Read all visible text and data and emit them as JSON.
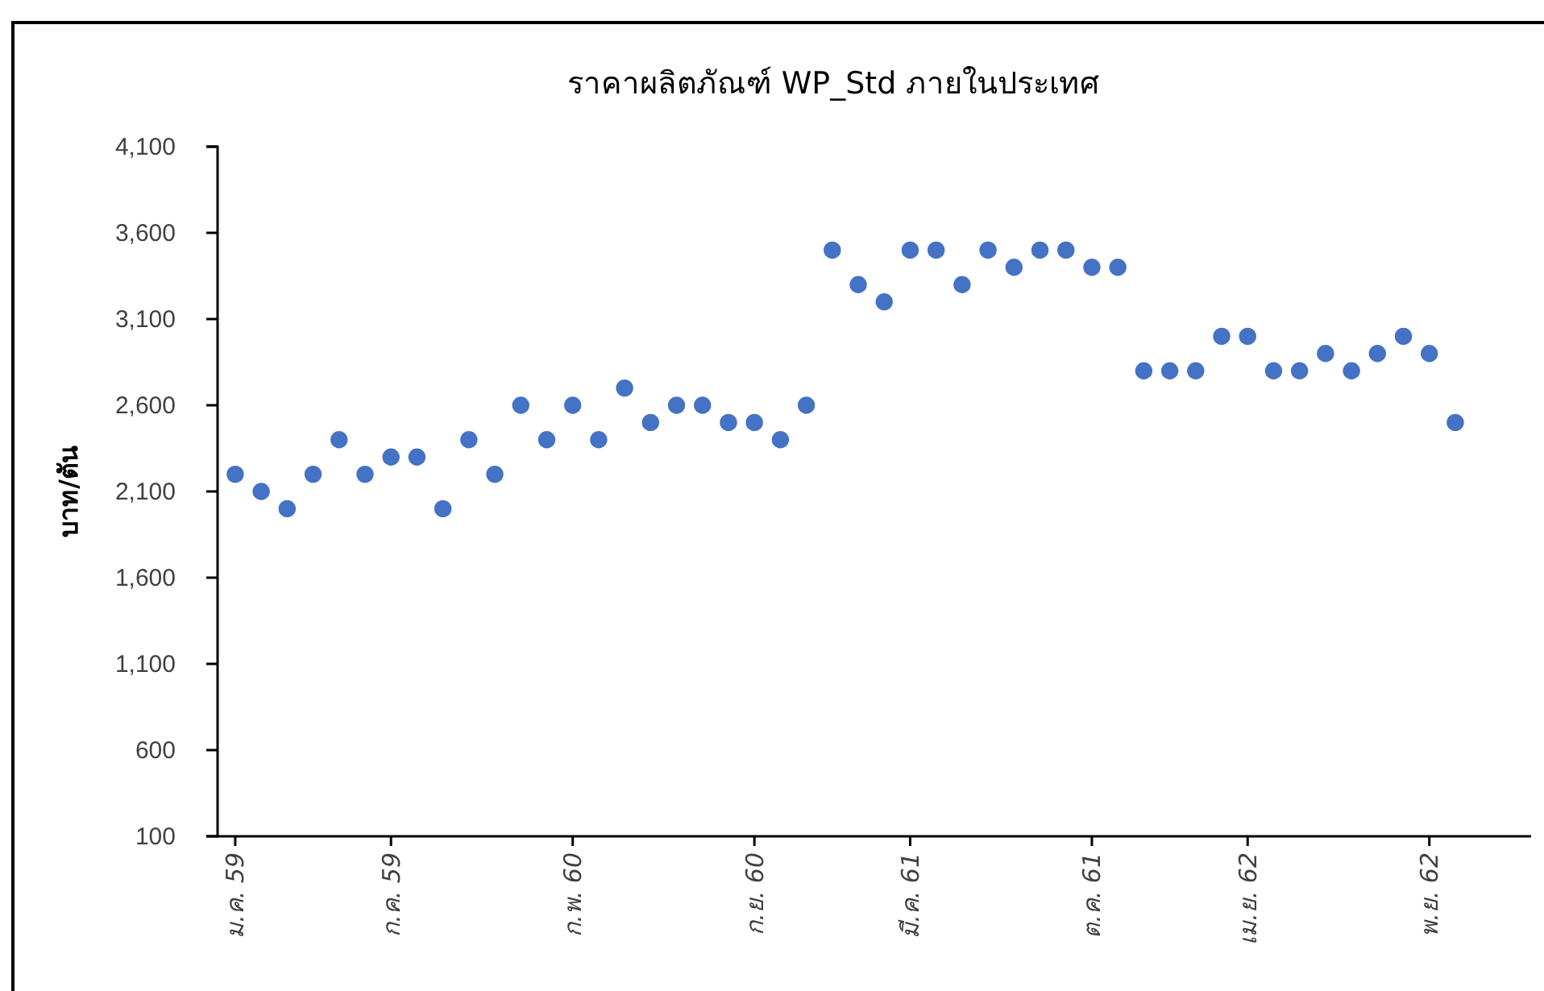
{
  "chart_data": {
    "type": "scatter",
    "title": "ราคาผลิตภัณฑ์ WP_Std ภายในประเทศ",
    "ylabel": "บาท/ตัน",
    "categories": [
      "ม.ค. 59",
      null,
      null,
      null,
      null,
      null,
      "ก.ค. 59",
      null,
      null,
      null,
      null,
      null,
      null,
      "ก.พ. 60",
      null,
      null,
      null,
      null,
      null,
      null,
      "ก.ย. 60",
      null,
      null,
      null,
      null,
      null,
      "มี.ค. 61",
      null,
      null,
      null,
      null,
      null,
      null,
      "ต.ค. 61",
      null,
      null,
      null,
      null,
      null,
      "เม.ย. 62",
      null,
      null,
      null,
      null,
      null,
      null,
      "พ.ย. 62",
      null
    ],
    "series": [
      {
        "color": "#4472c4",
        "values": [
          2200,
          2100,
          2000,
          2200,
          2400,
          2200,
          2300,
          2300,
          2000,
          2400,
          2200,
          2600,
          2400,
          2600,
          2400,
          2700,
          2500,
          2600,
          2600,
          2500,
          2500,
          2400,
          2600,
          3500,
          3300,
          3200,
          3500,
          3500,
          3300,
          3500,
          3400,
          3500,
          3500,
          3400,
          3400,
          2800,
          2800,
          2800,
          3000,
          3000,
          2800,
          2800,
          2900,
          2800,
          2900,
          3000,
          2900,
          2500
        ]
      }
    ],
    "ylim": [
      100,
      4100
    ],
    "yticks": [
      {
        "value": 100,
        "label": "100"
      },
      {
        "value": 600,
        "label": "600"
      },
      {
        "value": 1100,
        "label": "1,100"
      },
      {
        "value": 1600,
        "label": "1,600"
      },
      {
        "value": 2100,
        "label": "2,100"
      },
      {
        "value": 2600,
        "label": "2,600"
      },
      {
        "value": 3100,
        "label": "3,100"
      },
      {
        "value": 3600,
        "label": "3,600"
      },
      {
        "value": 4100,
        "label": "4,100"
      }
    ],
    "marker": "circle",
    "grid": false,
    "legend": false
  }
}
